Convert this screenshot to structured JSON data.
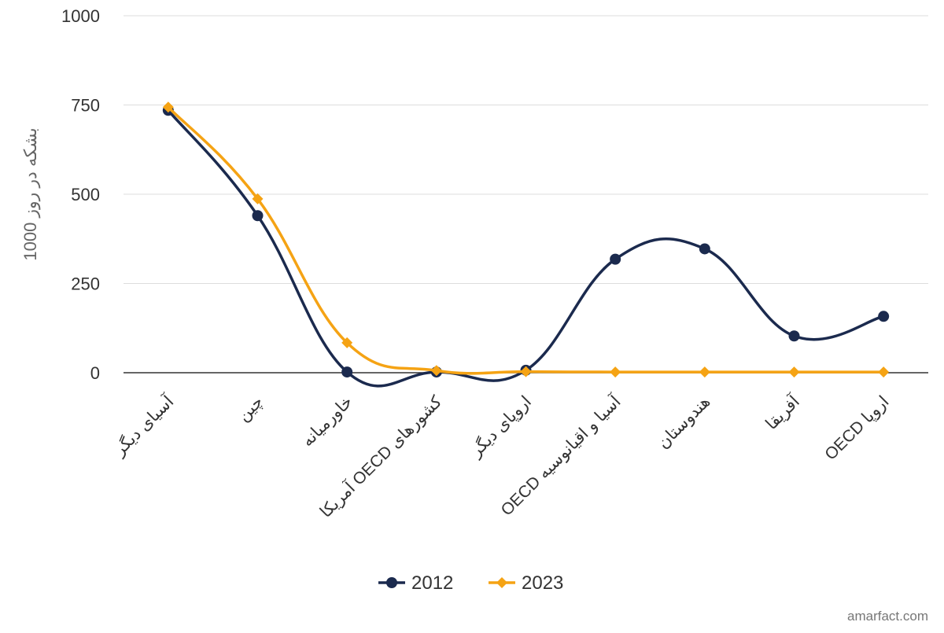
{
  "chart_data": {
    "type": "line",
    "title": "",
    "xlabel": "",
    "ylabel": "1000 بشکه در روز",
    "ylim": [
      0,
      1000
    ],
    "yticks": [
      0,
      250,
      500,
      750,
      1000
    ],
    "categories": [
      "آسیای دیگر",
      "چین",
      "خاورمیانه",
      "آمریکا OECD کشورهای",
      "اروپای دیگر",
      "OECD آسیا و اقیانوسیه",
      "هندوستان",
      "آفریقا",
      "OECD اروپا"
    ],
    "series": [
      {
        "name": "2012",
        "values": [
          735,
          440,
          2,
          2,
          7,
          318,
          347,
          103,
          158
        ],
        "color": "#1b2a4e",
        "marker": "circle"
      },
      {
        "name": "2023",
        "values": [
          744,
          487,
          84,
          6,
          3,
          2,
          2,
          2,
          2
        ],
        "color": "#f5a314",
        "marker": "diamond"
      }
    ],
    "grid": true,
    "legend": "bottom-center",
    "curve": "smooth"
  },
  "watermark": "amarfact.com"
}
